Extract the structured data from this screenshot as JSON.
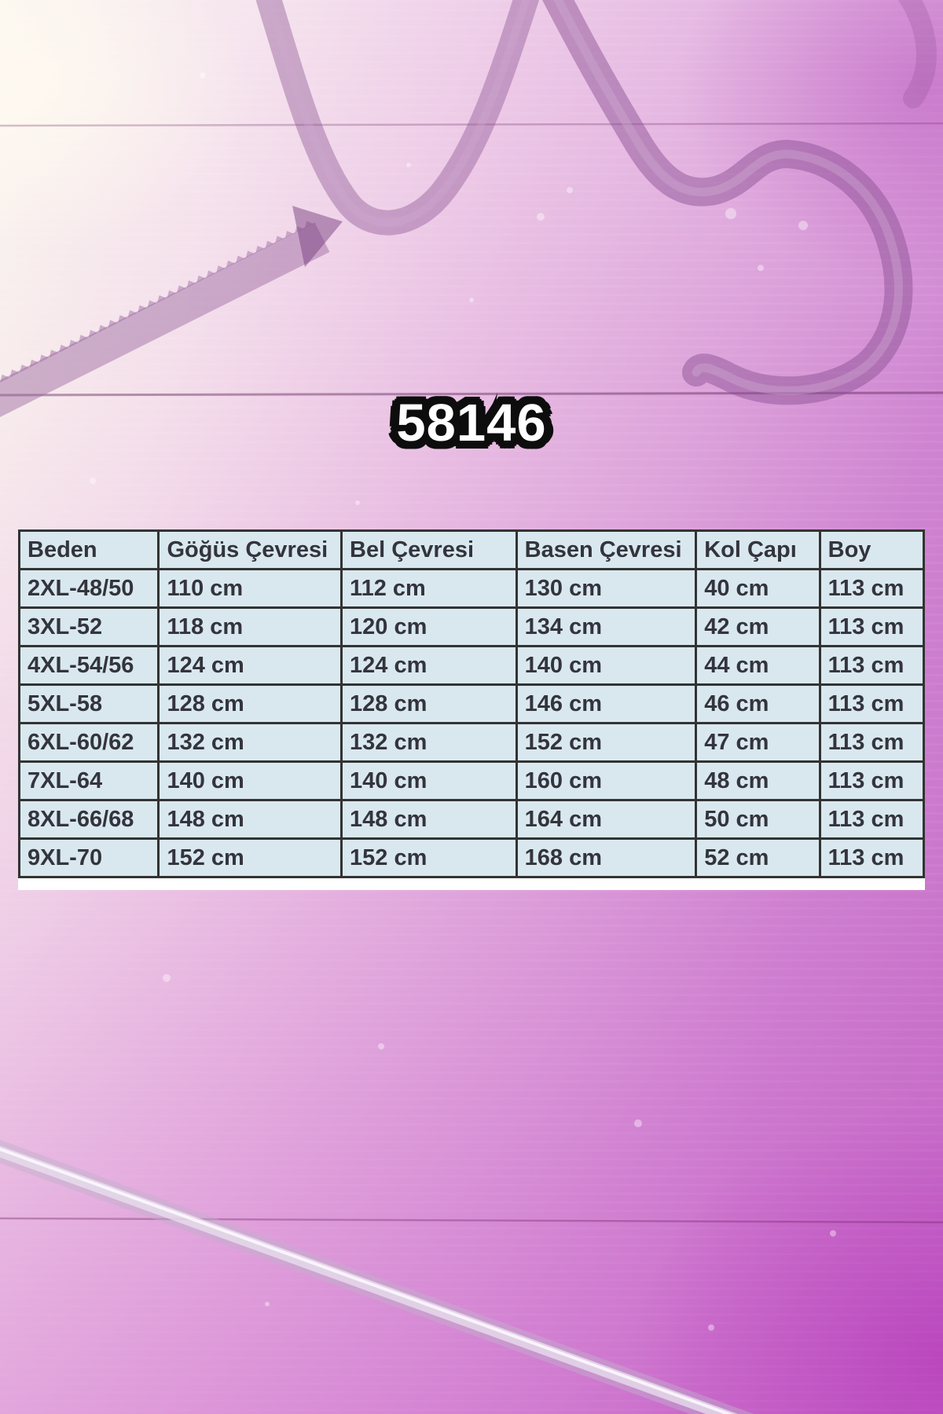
{
  "page": {
    "kind": "product-size-chart-graphic",
    "background_motifs": [
      "clothes-hanger-silhouette",
      "clothes-hanger-hook",
      "hanger-rod",
      "wood-plank-seams",
      "white-speckles"
    ]
  },
  "chart_data": {
    "type": "table",
    "title": "58146",
    "columns": [
      "Beden",
      "Göğüs Çevresi",
      "Bel Çevresi",
      "Basen Çevresi",
      "Kol Çapı",
      "Boy"
    ],
    "rows": [
      [
        "2XL-48/50",
        "110 cm",
        "112 cm",
        "130 cm",
        "40 cm",
        "113 cm"
      ],
      [
        "3XL-52",
        "118 cm",
        "120 cm",
        "134 cm",
        "42 cm",
        "113 cm"
      ],
      [
        "4XL-54/56",
        "124 cm",
        "124 cm",
        "140 cm",
        "44 cm",
        "113 cm"
      ],
      [
        "5XL-58",
        "128 cm",
        "128 cm",
        "146 cm",
        "46 cm",
        "113 cm"
      ],
      [
        "6XL-60/62",
        "132 cm",
        "132 cm",
        "152 cm",
        "47 cm",
        "113 cm"
      ],
      [
        "7XL-64",
        "140 cm",
        "140 cm",
        "160 cm",
        "48 cm",
        "113 cm"
      ],
      [
        "8XL-66/68",
        "148 cm",
        "148 cm",
        "164 cm",
        "50 cm",
        "113 cm"
      ],
      [
        "9XL-70",
        "152 cm",
        "152 cm",
        "168 cm",
        "52 cm",
        "113 cm"
      ]
    ],
    "legend_position": "none",
    "grid": true
  },
  "colors": {
    "background_light": "#faf4ed",
    "background_magenta": "#c672c8",
    "table_cell": "#d9e8ef",
    "table_border": "#333333",
    "title_fill": "#ffffff",
    "title_outline": "#0d0d0d",
    "hanger_silhouette": "rgba(140,85,148,0.5)"
  }
}
